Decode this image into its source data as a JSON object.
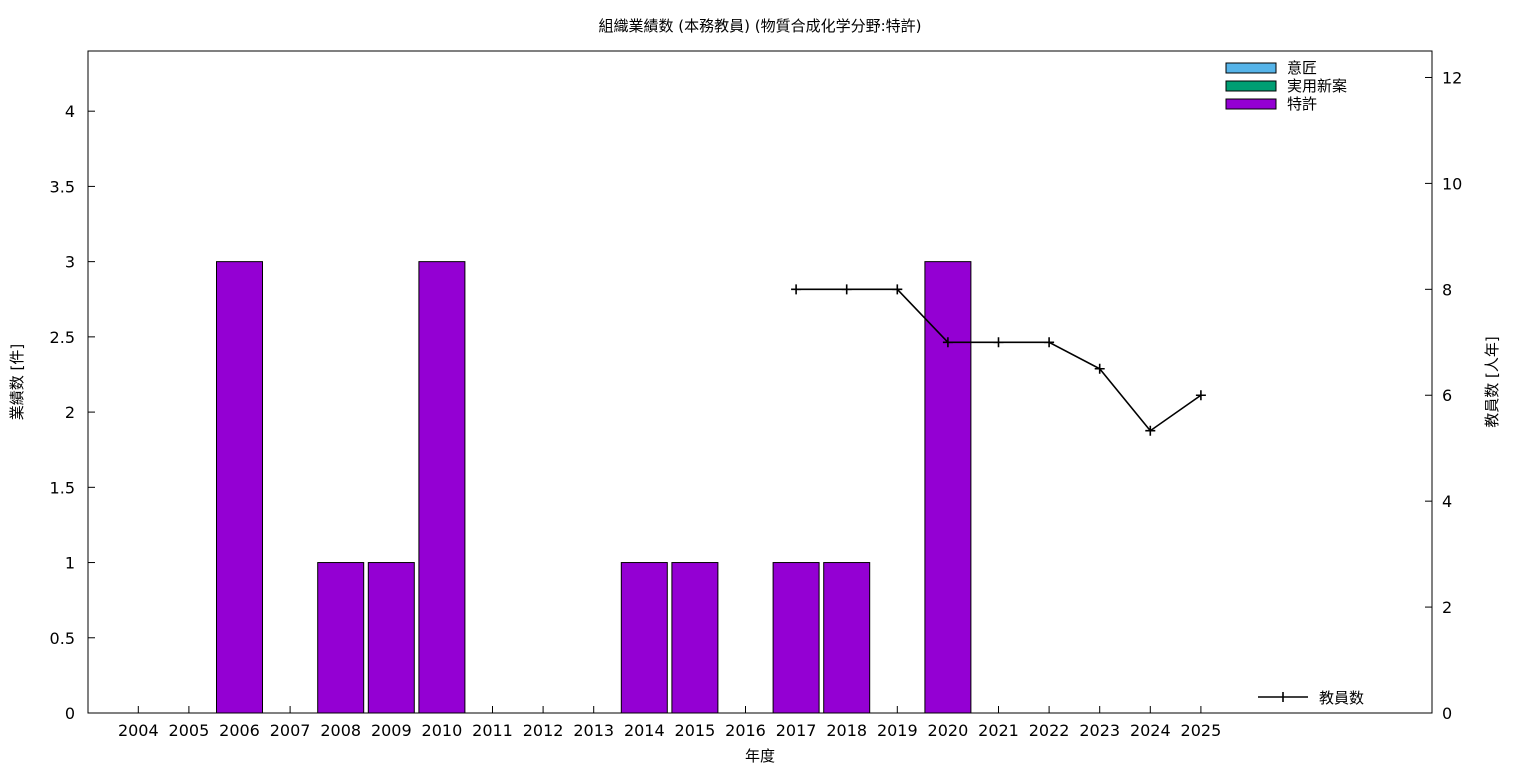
{
  "chart_data": {
    "type": "bar",
    "title": "組織業績数 (本務教員) (物質合成化学分野:特許)",
    "xlabel": "年度",
    "ylabel": "業績数 [件]",
    "y2label": "教員数 [人年]",
    "categories": [
      "2004",
      "2005",
      "2006",
      "2007",
      "2008",
      "2009",
      "2010",
      "2011",
      "2012",
      "2013",
      "2014",
      "2015",
      "2016",
      "2017",
      "2018",
      "2019",
      "2020",
      "2021",
      "2022",
      "2023",
      "2024",
      "2025"
    ],
    "ylim": [
      0,
      4.4
    ],
    "yticks": [
      0,
      0.5,
      1,
      1.5,
      2,
      2.5,
      3,
      3.5,
      4
    ],
    "ytick_labels": [
      "0",
      "0.5",
      "1",
      "1.5",
      "2",
      "2.5",
      "3",
      "3.5",
      "4"
    ],
    "y2lim": [
      0,
      12.5
    ],
    "y2ticks": [
      0,
      2,
      4,
      6,
      8,
      10,
      12
    ],
    "y2tick_labels": [
      "0",
      "2",
      "4",
      "6",
      "8",
      "10",
      "12"
    ],
    "stacked": true,
    "series": [
      {
        "name": "意匠",
        "color": "#56b4e9",
        "values": [
          0,
          0,
          0,
          0,
          0,
          0,
          0,
          0,
          0,
          0,
          0,
          0,
          0,
          0,
          0,
          0,
          0,
          0,
          0,
          0,
          0,
          0
        ]
      },
      {
        "name": "実用新案",
        "color": "#009e73",
        "values": [
          0,
          0,
          0,
          0,
          0,
          0,
          0,
          0,
          0,
          0,
          0,
          0,
          0,
          0,
          0,
          0,
          0,
          0,
          0,
          0,
          0,
          0
        ]
      },
      {
        "name": "特許",
        "color": "#9400d3",
        "values": [
          0,
          0,
          3,
          0,
          1,
          1,
          3,
          0,
          0,
          0,
          1,
          1,
          0,
          1,
          1,
          0,
          3,
          0,
          0,
          0,
          0,
          0
        ]
      }
    ],
    "line_series": {
      "name": "教員数",
      "color": "#000000",
      "axis": "y2",
      "x": [
        "2017",
        "2018",
        "2019",
        "2020",
        "2021",
        "2022",
        "2023",
        "2024",
        "2025"
      ],
      "values": [
        8,
        8,
        8,
        7,
        7,
        7,
        6.5,
        5.33,
        6
      ]
    },
    "legend_position": "top-right",
    "line_legend_position": "bottom-right",
    "grid": false
  }
}
